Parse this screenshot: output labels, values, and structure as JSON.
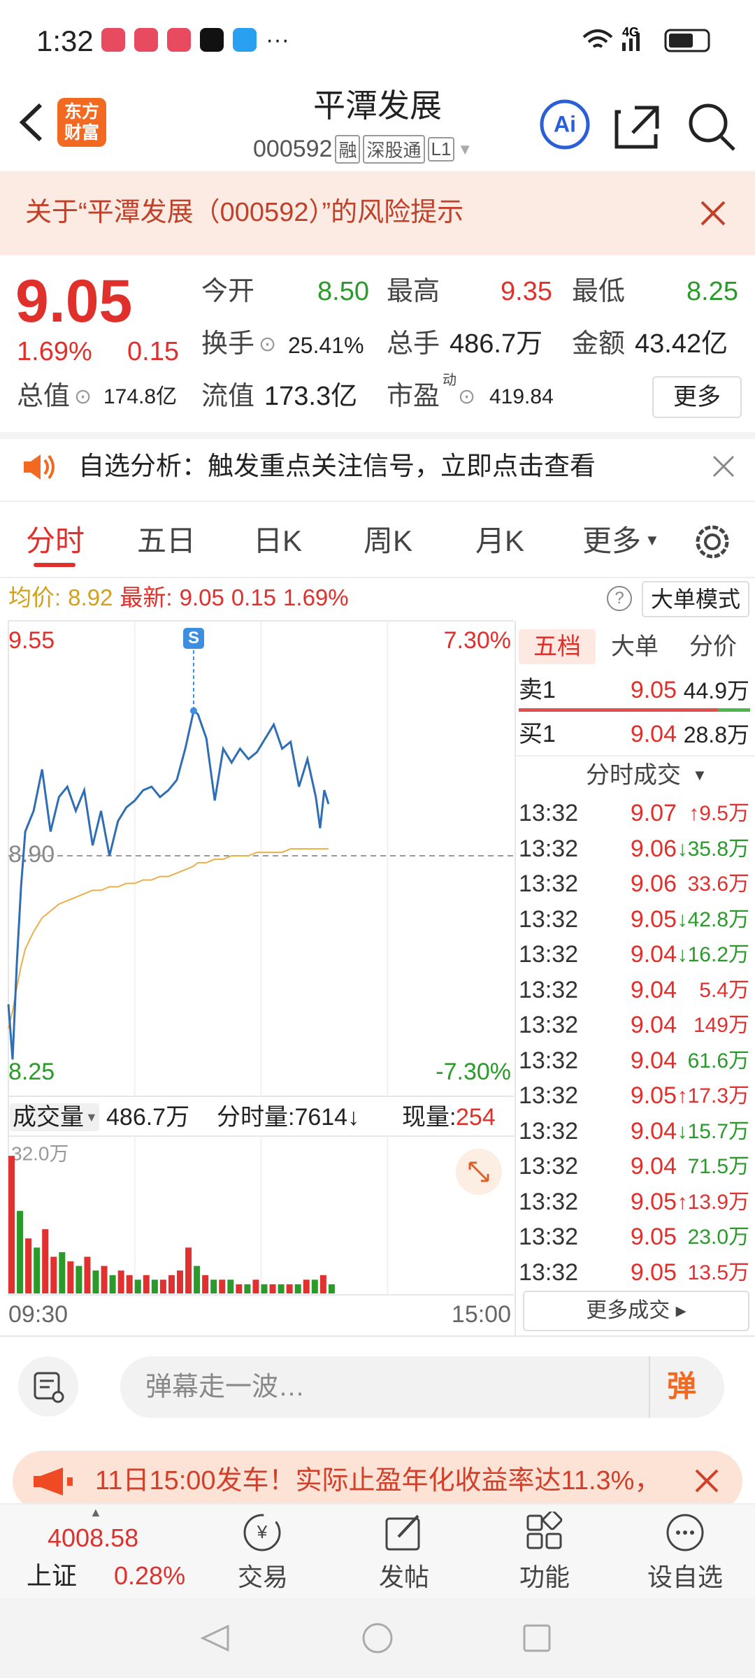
{
  "status_bar": {
    "time": "1:32",
    "network": "4G"
  },
  "header": {
    "logo": "东方财富",
    "title": "平潭发展",
    "code": "000592",
    "tags": [
      "融",
      "深股通",
      "L1"
    ],
    "ai": "Ai"
  },
  "risk_banner": {
    "text": "关于“平潭发展（000592）”的风险提示"
  },
  "quote": {
    "price": "9.05",
    "change_pct": "1.69%",
    "change": "0.15",
    "row1": [
      {
        "label": "今开",
        "value": "8.50"
      },
      {
        "label": "最高",
        "value": "9.35"
      },
      {
        "label": "最低",
        "value": "8.25"
      }
    ],
    "row2": [
      {
        "label": "换手",
        "value": "25.41%"
      },
      {
        "label": "总手",
        "value": "486.7万"
      },
      {
        "label": "金额",
        "value": "43.42亿"
      }
    ],
    "row3": [
      {
        "label": "总值",
        "value": "174.8亿"
      },
      {
        "label": "流值",
        "value": "173.3亿"
      },
      {
        "label": "市盈",
        "sup": "动",
        "value": "419.84"
      }
    ],
    "more": "更多"
  },
  "notice": {
    "text": "自选分析：触发重点关注信号，立即点击查看"
  },
  "tabs": [
    "分时",
    "五日",
    "日K",
    "周K",
    "月K",
    "更多"
  ],
  "info_line": {
    "avg_label": "均价:",
    "avg": "8.92",
    "latest_label": "最新:",
    "latest": "9.05",
    "change": "0.15",
    "change_pct": "1.69%",
    "help": "?",
    "mode": "大单模式"
  },
  "chart_data": [
    {
      "type": "line",
      "signal": "S",
      "x": [
        0,
        2,
        4,
        6,
        8,
        12,
        16,
        20,
        24,
        28,
        32,
        36,
        40,
        44,
        48,
        52,
        56,
        60,
        64,
        68,
        72,
        76,
        80,
        84,
        88,
        90,
        94,
        98,
        102,
        106,
        110,
        114,
        118,
        122,
        126,
        130,
        134,
        138,
        142,
        146,
        148,
        150,
        152
      ],
      "series": [
        {
          "color": "#2f6db5",
          "values": [
            8.47,
            8.31,
            8.59,
            8.81,
            8.97,
            9.03,
            9.15,
            8.97,
            9.07,
            9.1,
            9.03,
            9.09,
            8.93,
            9.03,
            8.9,
            9.0,
            9.04,
            9.06,
            9.09,
            9.1,
            9.07,
            9.09,
            9.12,
            9.21,
            9.32,
            9.31,
            9.24,
            9.06,
            9.21,
            9.17,
            9.21,
            9.18,
            9.2,
            9.24,
            9.28,
            9.21,
            9.23,
            9.1,
            9.18,
            9.07,
            8.98,
            9.09,
            9.05
          ]
        },
        {
          "color": "#e8b04a",
          "values": [
            8.4,
            8.45,
            8.52,
            8.58,
            8.63,
            8.68,
            8.72,
            8.74,
            8.76,
            8.77,
            8.78,
            8.79,
            8.8,
            8.8,
            8.81,
            8.81,
            8.82,
            8.82,
            8.83,
            8.83,
            8.84,
            8.84,
            8.85,
            8.86,
            8.87,
            8.88,
            8.88,
            8.89,
            8.89,
            8.9,
            8.9,
            8.9,
            8.91,
            8.91,
            8.91,
            8.91,
            8.92,
            8.92,
            8.92,
            8.92,
            8.92,
            8.92,
            8.92
          ]
        }
      ],
      "xlim": [
        0,
        240
      ],
      "ylim": [
        8.25,
        9.55
      ],
      "yticks": [
        8.25,
        {
          "value": 8.9,
          "label": "8.90"
        },
        9.55
      ],
      "y2lim": [
        -7.3,
        7.3
      ],
      "y2ticks": [
        {
          "value": -7.3,
          "label": "-7.30%"
        },
        {
          "value": 7.3,
          "label": "7.30%"
        }
      ]
    },
    {
      "type": "bar",
      "x": [
        0,
        4,
        8,
        12,
        16,
        20,
        24,
        28,
        32,
        36,
        40,
        44,
        48,
        52,
        56,
        60,
        64,
        68,
        72,
        76,
        80,
        84,
        88,
        92,
        96,
        100,
        104,
        108,
        112,
        116,
        120,
        124,
        128,
        132,
        136,
        140,
        144,
        148,
        152
      ],
      "values": [
        30,
        18,
        12,
        10,
        14,
        8,
        9,
        7,
        6,
        8,
        5,
        6,
        4,
        5,
        4,
        3,
        4,
        3,
        3,
        4,
        5,
        10,
        6,
        4,
        3,
        3,
        3,
        2,
        2,
        3,
        2,
        2,
        2,
        2,
        2,
        3,
        3,
        4,
        2
      ],
      "colors": [
        "#e03030",
        "#2a9a2a",
        "#e03030",
        "#2a9a2a",
        "#e03030",
        "#e03030",
        "#2a9a2a",
        "#e03030",
        "#2a9a2a",
        "#e03030",
        "#2a9a2a",
        "#e03030",
        "#2a9a2a",
        "#e03030",
        "#e03030",
        "#2a9a2a",
        "#e03030",
        "#2a9a2a",
        "#e03030",
        "#e03030",
        "#e03030",
        "#e03030",
        "#2a9a2a",
        "#e03030",
        "#2a9a2a",
        "#e03030",
        "#2a9a2a",
        "#e03030",
        "#2a9a2a",
        "#e03030",
        "#2a9a2a",
        "#e03030",
        "#2a9a2a",
        "#e03030",
        "#2a9a2a",
        "#e03030",
        "#2a9a2a",
        "#e03030",
        "#2a9a2a"
      ],
      "xlim": [
        0,
        240
      ],
      "ylim": [
        0,
        32
      ],
      "yticks": [
        {
          "value": 32,
          "label": "32.0万"
        }
      ],
      "xticks": [
        {
          "value": 0,
          "label": "09:30"
        },
        {
          "value": 240,
          "label": "15:00"
        }
      ]
    }
  ],
  "volume_header": {
    "label": "成交量",
    "total": "486.7万",
    "minute": "分时量:7614↓",
    "current_label": "现量:",
    "current": "254"
  },
  "order_book": {
    "tabs": [
      "五档",
      "大单",
      "分价"
    ],
    "rows": [
      {
        "label": "卖1",
        "price": "9.05",
        "volume": "44.9万"
      },
      {
        "label": "买1",
        "price": "9.04",
        "volume": "28.8万"
      }
    ]
  },
  "trades": {
    "title": "分时成交",
    "more": "更多成交",
    "rows": [
      {
        "time": "13:32",
        "price": "9.07",
        "volume": "↑9.5万",
        "color": "#e03030"
      },
      {
        "time": "13:32",
        "price": "9.06",
        "volume": "↓35.8万",
        "color": "#2a9a2a"
      },
      {
        "time": "13:32",
        "price": "9.06",
        "volume": "33.6万",
        "color": "#e03030"
      },
      {
        "time": "13:32",
        "price": "9.05",
        "volume": "↓42.8万",
        "color": "#2a9a2a"
      },
      {
        "time": "13:32",
        "price": "9.04",
        "volume": "↓16.2万",
        "color": "#2a9a2a"
      },
      {
        "time": "13:32",
        "price": "9.04",
        "volume": "5.4万",
        "color": "#e03030"
      },
      {
        "time": "13:32",
        "price": "9.04",
        "volume": "149万",
        "color": "#e03030"
      },
      {
        "time": "13:32",
        "price": "9.04",
        "volume": "61.6万",
        "color": "#2a9a2a"
      },
      {
        "time": "13:32",
        "price": "9.05",
        "volume": "↑17.3万",
        "color": "#e03030"
      },
      {
        "time": "13:32",
        "price": "9.04",
        "volume": "↓15.7万",
        "color": "#2a9a2a"
      },
      {
        "time": "13:32",
        "price": "9.04",
        "volume": "71.5万",
        "color": "#2a9a2a"
      },
      {
        "time": "13:32",
        "price": "9.05",
        "volume": "↑13.9万",
        "color": "#e03030"
      },
      {
        "time": "13:32",
        "price": "9.05",
        "volume": "23.0万",
        "color": "#2a9a2a"
      },
      {
        "time": "13:32",
        "price": "9.05",
        "volume": "13.5万",
        "color": "#e03030"
      }
    ]
  },
  "comment_bar": {
    "placeholder": "弹幕走一波…",
    "button": "弹"
  },
  "ad_banner": {
    "text": "11日15:00发车！实际止盈年化收益率达11.3%，"
  },
  "bottom_nav": {
    "index_value": "4008.58",
    "index_name": "上证",
    "index_change": "0.28%",
    "items": [
      "交易",
      "发帖",
      "功能",
      "设自选"
    ]
  }
}
